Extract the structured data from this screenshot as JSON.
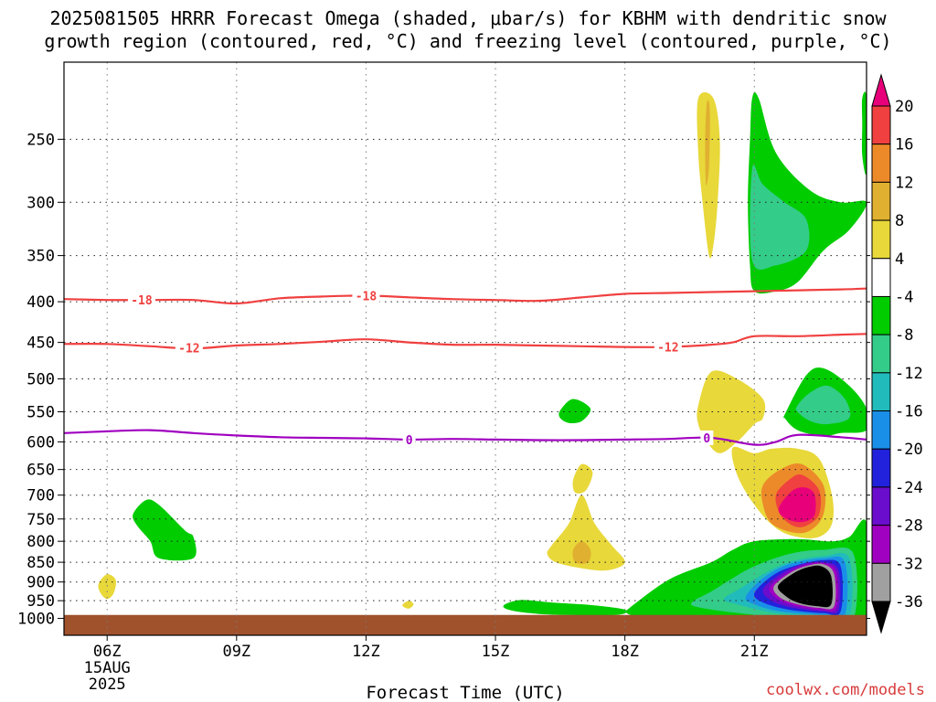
{
  "title_line1": "2025081505 HRRR Forecast Omega (shaded, μbar/s) for KBHM with dendritic snow",
  "title_line2": "growth region (contoured, red, °C) and freezing level (contoured, purple, °C)",
  "credit": "coolwx.com/models",
  "chart_data": {
    "type": "contour",
    "title": "2025081505 HRRR Forecast Omega (shaded, μbar/s) for KBHM with dendritic snow growth region (contoured, red, °C) and freezing level (contoured, purple, °C)",
    "xlabel": "Forecast Time (UTC)",
    "ylabel": "",
    "xlim": [
      5,
      23.6
    ],
    "ylim": [
      1050,
      200
    ],
    "yscale": "log",
    "y_ticks": [
      250,
      300,
      350,
      400,
      450,
      500,
      550,
      600,
      650,
      700,
      750,
      800,
      850,
      900,
      950,
      1000
    ],
    "x_ticks": [
      {
        "x": 6,
        "label": "06Z",
        "sub1": "15AUG",
        "sub2": "2025"
      },
      {
        "x": 9,
        "label": "09Z"
      },
      {
        "x": 12,
        "label": "12Z"
      },
      {
        "x": 15,
        "label": "15Z"
      },
      {
        "x": 18,
        "label": "18Z"
      },
      {
        "x": 21,
        "label": "21Z"
      }
    ],
    "grid": true,
    "colorbar": {
      "labels": [
        "20",
        "16",
        "12",
        "8",
        "4",
        "-4",
        "-8",
        "-12",
        "-16",
        "-20",
        "-24",
        "-28",
        "-32",
        "-36"
      ],
      "colors": [
        "#e8007a",
        "#f04040",
        "#ec8a2a",
        "#e0b030",
        "#e8d83a",
        "#ffffff",
        "#00cc00",
        "#33cc88",
        "#22bbbb",
        "#1a8fe8",
        "#2222dd",
        "#6a0dcc",
        "#a000c0",
        "#a0a0a0",
        "#000000"
      ],
      "units": "μbar/s"
    },
    "isotherm_labels": {
      "dgz_upper": "-18",
      "dgz_lower": "-12",
      "freezing": "0"
    },
    "contours": [
      {
        "name": "dgz_upper",
        "value": -18,
        "color": "#f04040",
        "x": [
          5.0,
          6.0,
          7.0,
          8.0,
          9.0,
          10.0,
          11.0,
          12.0,
          13.0,
          14.0,
          15.0,
          16.0,
          17.0,
          18.0,
          19.0,
          20.0,
          21.0,
          22.0,
          23.0,
          23.6
        ],
        "y": [
          397,
          398,
          398,
          398,
          402,
          396,
          394,
          393,
          395,
          397,
          398,
          399,
          395,
          391,
          390,
          389,
          388,
          387,
          386,
          385
        ]
      },
      {
        "name": "dgz_lower",
        "value": -12,
        "color": "#f04040",
        "x": [
          5.0,
          6.0,
          7.0,
          8.0,
          9.0,
          10.0,
          11.0,
          12.0,
          13.0,
          14.0,
          15.0,
          16.0,
          17.0,
          18.0,
          19.0,
          20.0,
          20.5,
          21.0,
          22.0,
          23.0,
          23.6
        ],
        "y": [
          452,
          452,
          455,
          458,
          454,
          452,
          449,
          446,
          450,
          453,
          453,
          454,
          455,
          456,
          456,
          453,
          450,
          442,
          442,
          440,
          439
        ]
      },
      {
        "name": "freezing",
        "value": 0,
        "color": "#a000c0",
        "x": [
          5.0,
          6.0,
          7.0,
          8.0,
          9.0,
          10.0,
          11.0,
          12.0,
          13.0,
          14.0,
          15.0,
          16.0,
          17.0,
          18.0,
          19.0,
          20.0,
          21.0,
          21.5,
          22.0,
          23.0,
          23.6
        ],
        "y": [
          585,
          582,
          580,
          585,
          589,
          592,
          593,
          594,
          596,
          595,
          596,
          597,
          597,
          596,
          595,
          593,
          605,
          600,
          588,
          592,
          596
        ]
      }
    ],
    "label_positions": [
      {
        "contour": "dgz_upper",
        "x": 6.8,
        "y": 398
      },
      {
        "contour": "dgz_upper",
        "x": 12.0,
        "y": 393
      },
      {
        "contour": "dgz_lower",
        "x": 7.9,
        "y": 457
      },
      {
        "contour": "dgz_lower",
        "x": 19.0,
        "y": 456
      },
      {
        "contour": "freezing",
        "x": 13.0,
        "y": 596
      },
      {
        "contour": "freezing",
        "x": 19.9,
        "y": 593
      }
    ],
    "shaded_regions": [
      {
        "name": "omega-pos-upper-a",
        "value": 4,
        "color": "#e8d83a",
        "x": [
          19.7,
          20.05,
          20.2,
          20.15,
          20.05,
          19.95,
          19.8,
          19.7
        ],
        "y": [
          222,
          222,
          250,
          300,
          340,
          350,
          300,
          260
        ]
      },
      {
        "name": "omega-pos-upper-a-core",
        "value": 8,
        "color": "#e0b030",
        "x": [
          19.9,
          19.97,
          19.95,
          19.88,
          19.86
        ],
        "y": [
          225,
          230,
          270,
          285,
          250
        ]
      },
      {
        "name": "omega-neg-upper-b",
        "value": -4,
        "color": "#00cc00",
        "x": [
          20.95,
          21.1,
          21.5,
          22.3,
          23.0,
          23.6,
          23.2,
          22.6,
          22.0,
          21.5,
          21.0,
          20.9,
          20.85,
          20.9
        ],
        "y": [
          222,
          222,
          260,
          290,
          300,
          300,
          325,
          345,
          378,
          388,
          388,
          360,
          300,
          250
        ]
      },
      {
        "name": "omega-neg-upper-b-core",
        "value": -8,
        "color": "#33cc88",
        "x": [
          20.95,
          21.2,
          21.7,
          22.2,
          22.2,
          21.5,
          20.95
        ],
        "y": [
          272,
          285,
          300,
          315,
          345,
          360,
          355
        ]
      },
      {
        "name": "omega-neg-upper-right",
        "value": -4,
        "color": "#00cc00",
        "x": [
          23.5,
          23.6,
          23.6,
          23.5,
          23.5
        ],
        "y": [
          222,
          222,
          275,
          262,
          240
        ]
      },
      {
        "name": "omega-neg-mid-small",
        "value": -4,
        "color": "#00cc00",
        "x": [
          16.5,
          16.8,
          17.2,
          17.0,
          16.7,
          16.5
        ],
        "y": [
          548,
          530,
          545,
          565,
          568,
          560
        ]
      },
      {
        "name": "omega-pos-mid-right",
        "value": 4,
        "color": "#e8d83a",
        "x": [
          19.7,
          20.0,
          20.6,
          21.2,
          21.2,
          21.0,
          20.6,
          20.2,
          19.9,
          19.7
        ],
        "y": [
          540,
          490,
          500,
          530,
          560,
          570,
          600,
          620,
          600,
          570
        ]
      },
      {
        "name": "omega-neg-mid-right",
        "value": -4,
        "color": "#00cc00",
        "x": [
          21.7,
          22.2,
          22.6,
          23.2,
          23.6,
          23.6,
          23.0,
          22.6,
          22.0,
          21.7
        ],
        "y": [
          555,
          495,
          485,
          510,
          545,
          580,
          585,
          590,
          580,
          560
        ]
      },
      {
        "name": "omega-neg-mid-right-core",
        "value": -8,
        "color": "#33cc88",
        "x": [
          22.0,
          22.3,
          22.7,
          23.1,
          23.2,
          22.7,
          22.3,
          22.0
        ],
        "y": [
          540,
          520,
          510,
          530,
          560,
          570,
          565,
          550
        ]
      },
      {
        "name": "omega-pos-low-right",
        "value": 4,
        "color": "#e8d83a",
        "x": [
          20.5,
          21.0,
          21.4,
          22.0,
          22.5,
          22.8,
          22.8,
          22.5,
          22.0,
          21.5,
          21.0,
          20.6
        ],
        "y": [
          610,
          620,
          612,
          612,
          630,
          700,
          760,
          790,
          790,
          770,
          720,
          660
        ]
      },
      {
        "name": "omega-pos-low-right-12",
        "value": 12,
        "color": "#ec8a2a",
        "x": [
          21.2,
          21.6,
          22.1,
          22.6,
          22.6,
          22.3,
          21.9,
          21.4,
          21.2
        ],
        "y": [
          680,
          650,
          640,
          680,
          740,
          775,
          780,
          760,
          720
        ]
      },
      {
        "name": "omega-pos-low-right-16",
        "value": 16,
        "color": "#f04040",
        "x": [
          21.5,
          21.8,
          22.1,
          22.5,
          22.5,
          22.2,
          21.9,
          21.6
        ],
        "y": [
          700,
          670,
          660,
          690,
          740,
          765,
          765,
          740
        ]
      },
      {
        "name": "omega-pos-low-right-20",
        "value": 20,
        "color": "#e8007a",
        "x": [
          21.6,
          21.9,
          22.2,
          22.4,
          22.4,
          22.2,
          21.9,
          21.6
        ],
        "y": [
          720,
          690,
          685,
          700,
          740,
          755,
          755,
          740
        ]
      },
      {
        "name": "omega-neg-lower-band",
        "value": -4,
        "color": "#00cc00",
        "x": [
          18.0,
          19.0,
          20.0,
          20.5,
          21.0,
          22.0,
          22.8,
          23.2,
          23.6,
          23.6,
          23.3,
          22.0,
          20.0,
          19.0,
          18.2,
          18.0
        ],
        "y": [
          980,
          895,
          850,
          820,
          800,
          795,
          800,
          790,
          760,
          1000,
          1010,
          1010,
          1005,
          1000,
          992,
          980
        ]
      },
      {
        "name": "omega-neg-lower-band-8",
        "value": -8,
        "color": "#33cc88",
        "x": [
          19.6,
          20.0,
          20.5,
          21.0,
          21.8,
          22.6,
          23.3,
          23.3,
          22.6,
          21.5,
          20.3,
          19.6
        ],
        "y": [
          950,
          925,
          890,
          860,
          830,
          820,
          830,
          1000,
          1000,
          995,
          980,
          965
        ]
      },
      {
        "name": "omega-neg-lower-band-12",
        "value": -12,
        "color": "#22bbbb",
        "x": [
          20.3,
          20.7,
          21.2,
          21.8,
          22.6,
          23.2,
          23.2,
          22.6,
          21.5,
          20.6
        ],
        "y": [
          945,
          915,
          880,
          850,
          835,
          840,
          995,
          995,
          985,
          960
        ]
      },
      {
        "name": "omega-neg-lower-band-16",
        "value": -16,
        "color": "#1a8fe8",
        "x": [
          20.8,
          21.2,
          21.8,
          22.6,
          23.1,
          23.1,
          22.6,
          21.6,
          21.0
        ],
        "y": [
          940,
          890,
          855,
          840,
          850,
          990,
          990,
          980,
          960
        ]
      },
      {
        "name": "omega-neg-lower-band-20",
        "value": -20,
        "color": "#2222dd",
        "x": [
          21.0,
          21.4,
          21.9,
          22.6,
          23.0,
          23.0,
          22.6,
          21.8,
          21.2
        ],
        "y": [
          930,
          885,
          860,
          845,
          860,
          980,
          985,
          975,
          955
        ]
      },
      {
        "name": "omega-neg-lower-band-24",
        "value": -24,
        "color": "#6a0dcc",
        "x": [
          21.2,
          21.6,
          22.1,
          22.6,
          22.95,
          22.95,
          22.6,
          21.9,
          21.4
        ],
        "y": [
          920,
          880,
          855,
          850,
          870,
          975,
          980,
          970,
          950
        ]
      },
      {
        "name": "omega-neg-lower-band-28",
        "value": -28,
        "color": "#a000c0",
        "x": [
          21.35,
          21.75,
          22.2,
          22.6,
          22.9,
          22.9,
          22.55,
          22.0,
          21.55
        ],
        "y": [
          915,
          878,
          856,
          852,
          875,
          970,
          976,
          966,
          946
        ]
      },
      {
        "name": "omega-neg-lower-band-32",
        "value": -32,
        "color": "#a0a0a0",
        "x": [
          21.45,
          21.85,
          22.25,
          22.6,
          22.85,
          22.85,
          22.5,
          22.0,
          21.6
        ],
        "y": [
          912,
          875,
          858,
          855,
          880,
          965,
          970,
          960,
          942
        ]
      },
      {
        "name": "omega-neg-lower-band-36",
        "value": -36,
        "color": "#000000",
        "x": [
          21.55,
          21.9,
          22.25,
          22.55,
          22.78,
          22.78,
          22.45,
          22.0,
          21.7
        ],
        "y": [
          910,
          878,
          862,
          860,
          885,
          960,
          965,
          955,
          935
        ]
      },
      {
        "name": "omega-neg-lower-mid",
        "value": -4,
        "color": "#00cc00",
        "x": [
          15.2,
          15.6,
          16.3,
          17.2,
          18.0,
          17.8,
          16.5,
          15.8,
          15.3
        ],
        "y": [
          962,
          948,
          955,
          962,
          975,
          990,
          990,
          985,
          975
        ]
      },
      {
        "name": "omega-pos-low-mid",
        "value": 4,
        "color": "#e8d83a",
        "x": [
          16.3,
          16.7,
          17.0,
          17.3,
          17.7,
          18.0,
          17.6,
          17.0,
          16.4,
          16.2
        ],
        "y": [
          810,
          760,
          700,
          760,
          810,
          850,
          870,
          865,
          850,
          830
        ]
      },
      {
        "name": "omega-pos-low-mid-top",
        "value": 4,
        "color": "#e8d83a",
        "x": [
          16.8,
          17.0,
          17.25,
          17.1,
          16.85
        ],
        "y": [
          670,
          640,
          655,
          690,
          695
        ]
      },
      {
        "name": "omega-pos-low-mid-core",
        "value": 8,
        "color": "#e0b030",
        "x": [
          16.8,
          17.0,
          17.2,
          17.15,
          16.85
        ],
        "y": [
          820,
          800,
          820,
          850,
          850
        ]
      },
      {
        "name": "omega-neg-low-left",
        "value": -4,
        "color": "#00cc00",
        "x": [
          6.6,
          6.9,
          7.2,
          7.8,
          8.0,
          8.0,
          7.2,
          7.0,
          6.7
        ],
        "y": [
          740,
          710,
          720,
          775,
          790,
          840,
          840,
          800,
          765
        ]
      },
      {
        "name": "omega-pos-low-left",
        "value": 4,
        "color": "#e8d83a",
        "x": [
          5.8,
          6.0,
          6.2,
          6.15,
          6.0,
          5.85
        ],
        "y": [
          905,
          880,
          895,
          930,
          945,
          930
        ]
      },
      {
        "name": "omega-pos-low-small",
        "value": 4,
        "color": "#e8d83a",
        "x": [
          12.85,
          13.0,
          13.1,
          13.0,
          12.88
        ],
        "y": [
          960,
          950,
          960,
          972,
          968
        ]
      }
    ],
    "terrain": {
      "color": "#a0522d",
      "top": 990
    },
    "notes": "Omega isobars/contours estimated from figure"
  }
}
